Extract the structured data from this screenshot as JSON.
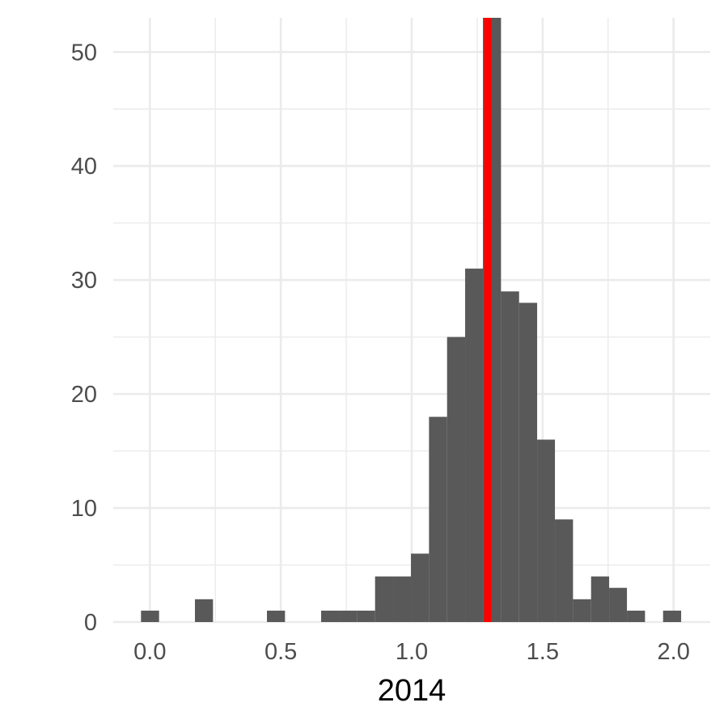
{
  "chart_data": {
    "type": "bar",
    "subtype": "histogram",
    "xlabel": "2014",
    "ylabel": "",
    "xlim": [
      -0.14,
      2.14
    ],
    "ylim": [
      0,
      53
    ],
    "x_ticks": [
      0.0,
      0.5,
      1.0,
      1.5,
      2.0
    ],
    "x_tick_labels": [
      "0.0",
      "0.5",
      "1.0",
      "1.5",
      "2.0"
    ],
    "y_ticks": [
      0,
      10,
      20,
      30,
      40,
      50
    ],
    "y_tick_labels": [
      "0",
      "10",
      "20",
      "30",
      "40",
      "50"
    ],
    "bin_width": 0.069,
    "bins": [
      {
        "x0": -0.034,
        "x1": 0.035,
        "count": 1
      },
      {
        "x0": 0.172,
        "x1": 0.241,
        "count": 2
      },
      {
        "x0": 0.447,
        "x1": 0.516,
        "count": 1
      },
      {
        "x0": 0.654,
        "x1": 0.722,
        "count": 1
      },
      {
        "x0": 0.722,
        "x1": 0.791,
        "count": 1
      },
      {
        "x0": 0.791,
        "x1": 0.86,
        "count": 1
      },
      {
        "x0": 0.86,
        "x1": 0.929,
        "count": 4
      },
      {
        "x0": 0.929,
        "x1": 0.997,
        "count": 4
      },
      {
        "x0": 0.997,
        "x1": 1.066,
        "count": 6
      },
      {
        "x0": 1.066,
        "x1": 1.135,
        "count": 18
      },
      {
        "x0": 1.135,
        "x1": 1.204,
        "count": 25
      },
      {
        "x0": 1.204,
        "x1": 1.272,
        "count": 31
      },
      {
        "x0": 1.272,
        "x1": 1.341,
        "count": 53
      },
      {
        "x0": 1.341,
        "x1": 1.41,
        "count": 29
      },
      {
        "x0": 1.41,
        "x1": 1.479,
        "count": 28
      },
      {
        "x0": 1.479,
        "x1": 1.547,
        "count": 16
      },
      {
        "x0": 1.547,
        "x1": 1.616,
        "count": 9
      },
      {
        "x0": 1.616,
        "x1": 1.685,
        "count": 2
      },
      {
        "x0": 1.685,
        "x1": 1.754,
        "count": 4
      },
      {
        "x0": 1.754,
        "x1": 1.822,
        "count": 3
      },
      {
        "x0": 1.822,
        "x1": 1.891,
        "count": 1
      },
      {
        "x0": 1.96,
        "x1": 2.029,
        "count": 1
      }
    ],
    "reference_line": {
      "x": 1.29,
      "color": "#ff0000"
    },
    "bar_color": "#595959",
    "grid": true,
    "legend": "none"
  }
}
